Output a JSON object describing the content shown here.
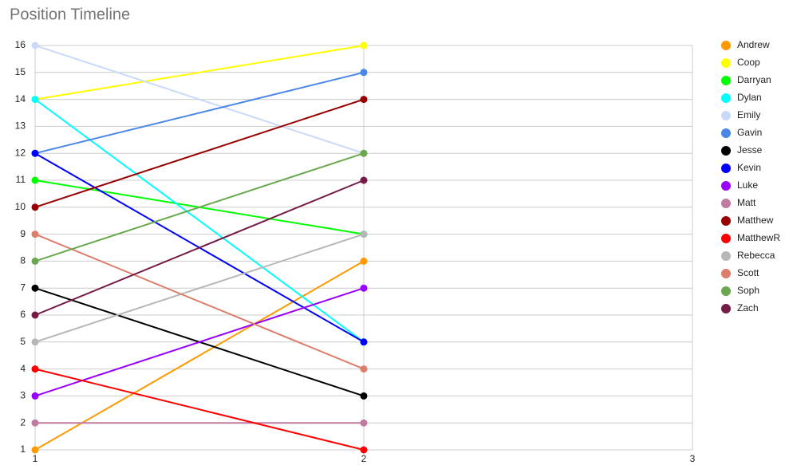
{
  "chart_data": {
    "type": "line",
    "title": "Position Timeline",
    "x": [
      1,
      2
    ],
    "xlim": [
      1,
      3
    ],
    "xticks": [
      1,
      2,
      3
    ],
    "ylim": [
      1,
      16
    ],
    "yticks": [
      1,
      2,
      3,
      4,
      5,
      6,
      7,
      8,
      9,
      10,
      11,
      12,
      13,
      14,
      15,
      16
    ],
    "grid": true,
    "legend": "right",
    "series": [
      {
        "name": "Andrew",
        "color": "#ff9900",
        "values": [
          1,
          8
        ]
      },
      {
        "name": "Coop",
        "color": "#ffff00",
        "values": [
          14,
          16
        ]
      },
      {
        "name": "Darryan",
        "color": "#00ff00",
        "values": [
          11,
          9
        ]
      },
      {
        "name": "Dylan",
        "color": "#00ffff",
        "values": [
          14,
          5
        ]
      },
      {
        "name": "Emily",
        "color": "#c9daf8",
        "values": [
          16,
          12
        ]
      },
      {
        "name": "Gavin",
        "color": "#4a86e8",
        "values": [
          12,
          15
        ]
      },
      {
        "name": "Jesse",
        "color": "#000000",
        "values": [
          7,
          3
        ]
      },
      {
        "name": "Kevin",
        "color": "#0000ff",
        "values": [
          12,
          5
        ]
      },
      {
        "name": "Luke",
        "color": "#9900ff",
        "values": [
          3,
          7
        ]
      },
      {
        "name": "Matt",
        "color": "#c27ba0",
        "values": [
          2,
          2
        ]
      },
      {
        "name": "Matthew",
        "color": "#980000",
        "values": [
          10,
          14
        ]
      },
      {
        "name": "MatthewR",
        "color": "#ff0000",
        "values": [
          4,
          1
        ]
      },
      {
        "name": "Rebecca",
        "color": "#b7b7b7",
        "values": [
          5,
          9
        ]
      },
      {
        "name": "Scott",
        "color": "#dd7e6b",
        "values": [
          9,
          4
        ]
      },
      {
        "name": "Soph",
        "color": "#6aa84f",
        "values": [
          8,
          12
        ]
      },
      {
        "name": "Zach",
        "color": "#741b47",
        "values": [
          6,
          11
        ]
      }
    ]
  }
}
